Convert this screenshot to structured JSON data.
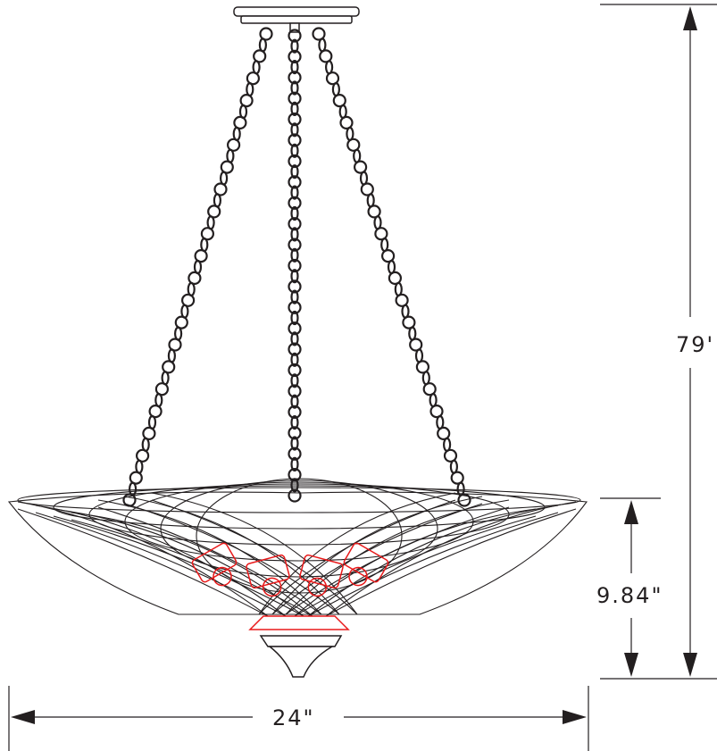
{
  "dimensions": {
    "overall_height": "79'",
    "bowl_height": "9.84\"",
    "width": "24\""
  },
  "colors": {
    "line": "#231f20",
    "bulb": "#e8191a",
    "background": "#ffffff"
  }
}
